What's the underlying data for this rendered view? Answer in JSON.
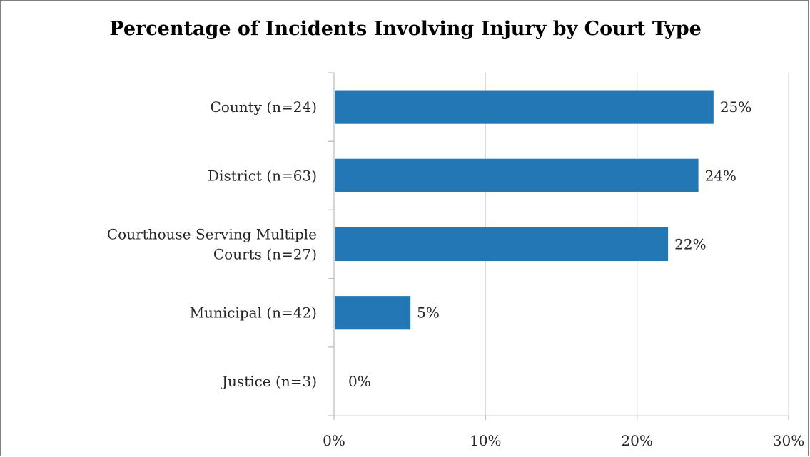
{
  "chart_data": {
    "type": "bar",
    "orientation": "horizontal",
    "title": "Percentage of Incidents Involving Injury by Court Type",
    "xlabel": "",
    "ylabel": "",
    "categories": [
      "County (n=24)",
      "District (n=63)",
      "Courthouse Serving Multiple Courts (n=27)",
      "Municipal (n=42)",
      "Justice (n=3)"
    ],
    "values": [
      25,
      24,
      22,
      5,
      0
    ],
    "data_labels": [
      "25%",
      "24%",
      "22%",
      "5%",
      "0%"
    ],
    "xlim": [
      0,
      30
    ],
    "x_ticks": [
      "0%",
      "10%",
      "20%",
      "30%"
    ],
    "grid": "vertical",
    "legend": "none",
    "bar_color": "#2277b4"
  }
}
